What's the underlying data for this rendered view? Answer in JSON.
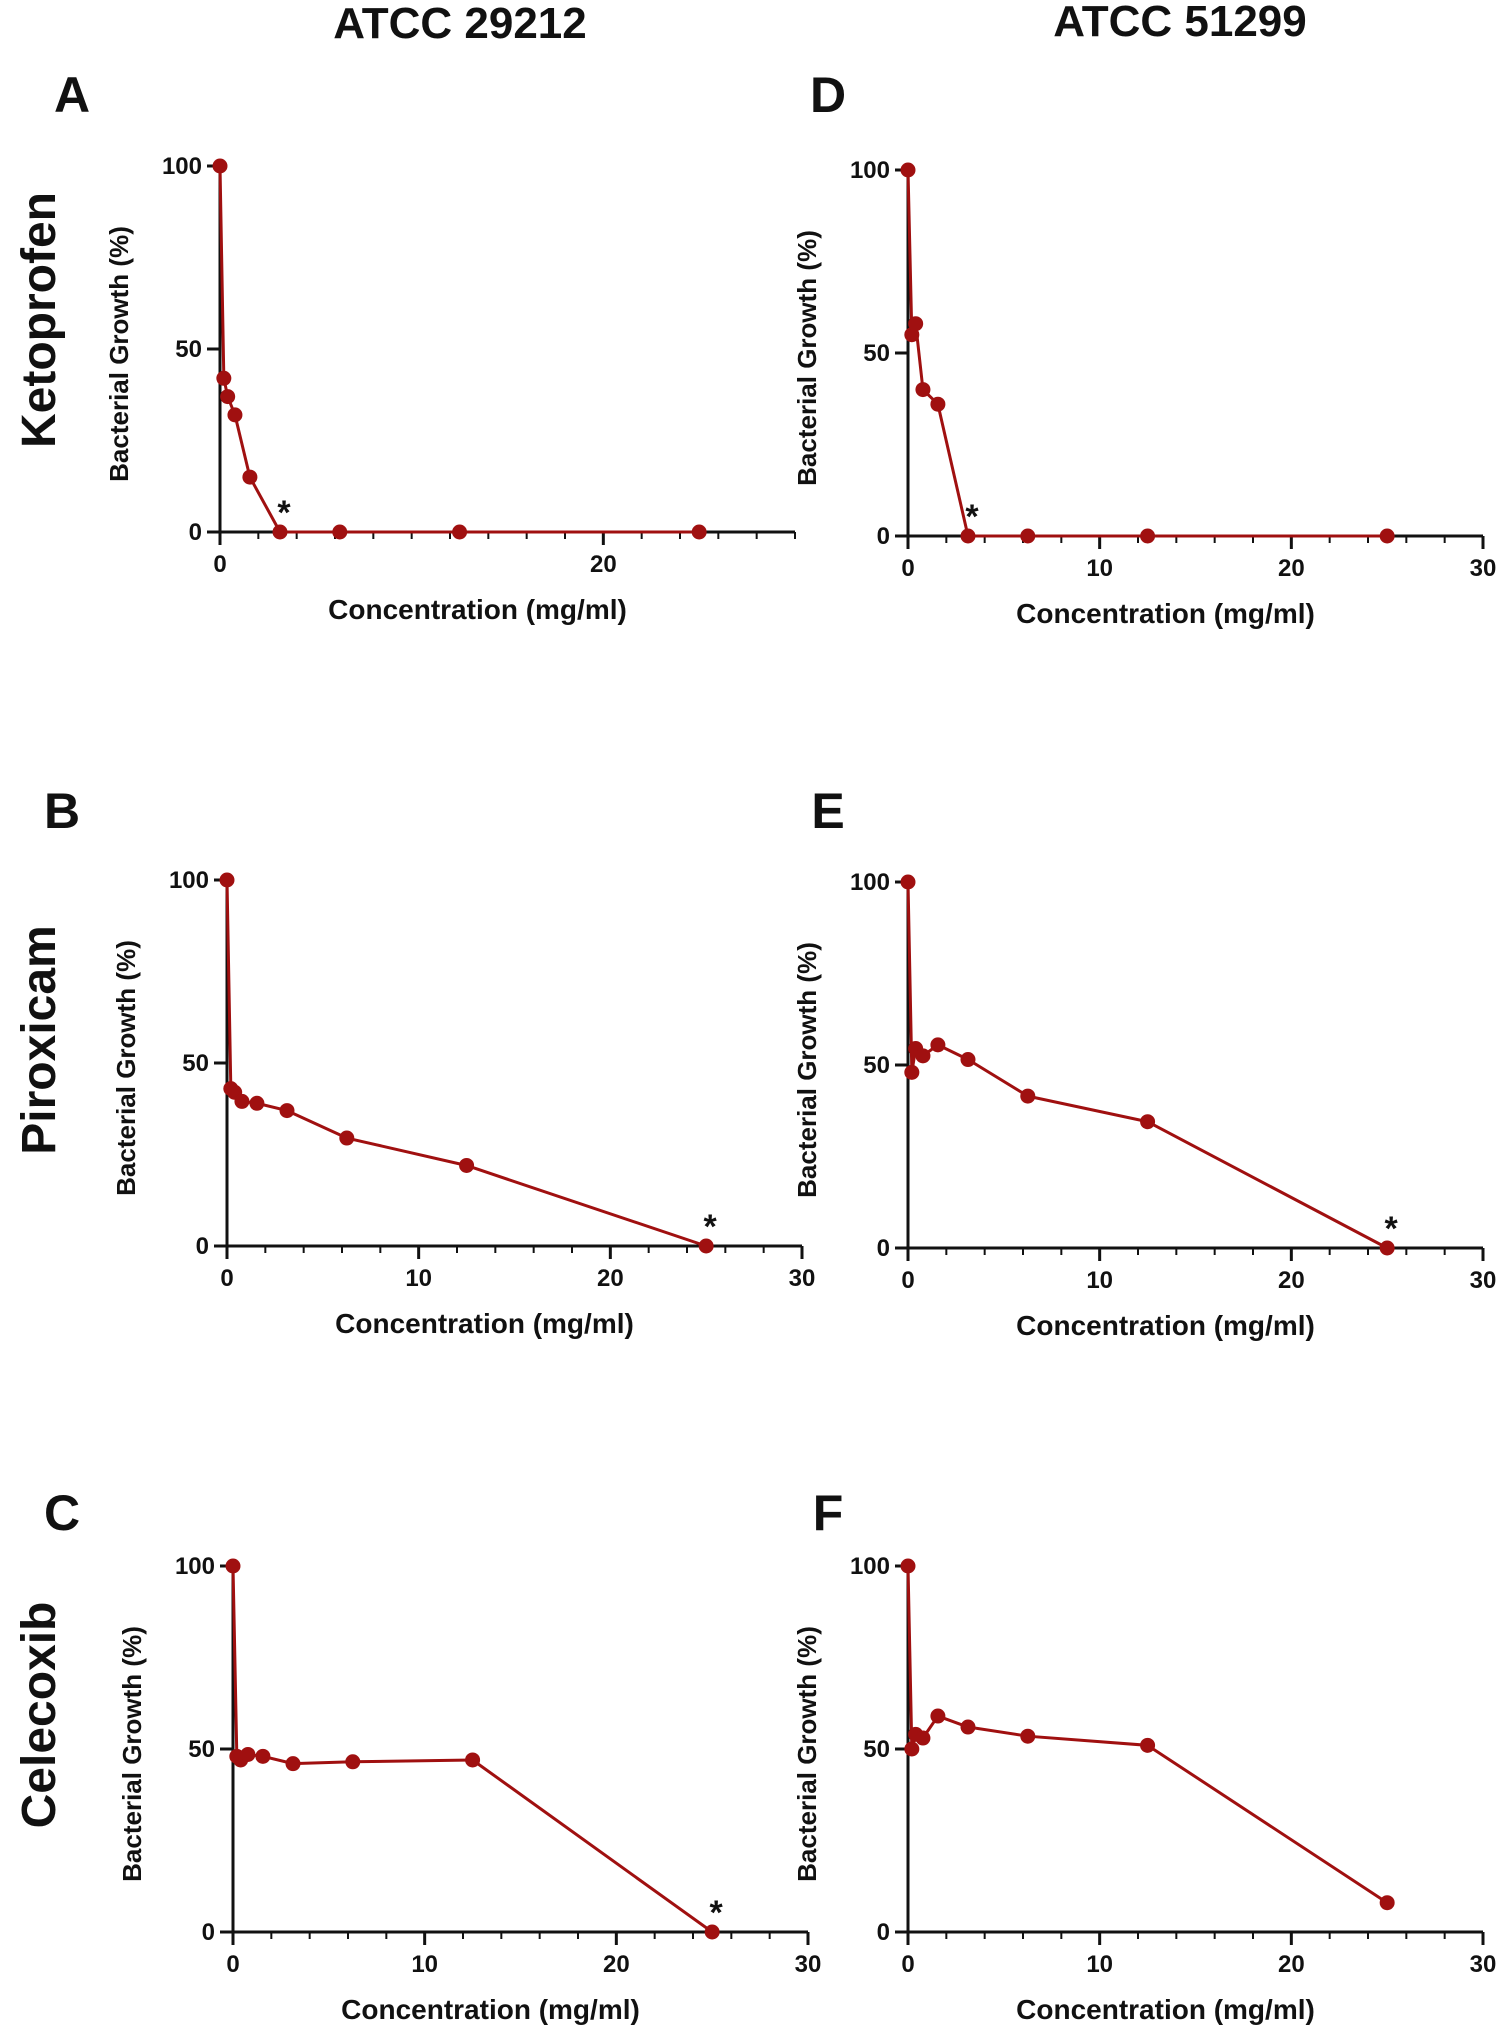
{
  "column_titles": [
    "ATCC 29212",
    "ATCC 51299"
  ],
  "row_labels": [
    "Ketoprofen",
    "Piroxicam",
    "Celecoxib"
  ],
  "colors": {
    "series": "#a01010",
    "axis": "#111111",
    "text": "#111111"
  },
  "chart_data": [
    {
      "type": "line",
      "panel": "A",
      "strain": "ATCC 29212",
      "drug": "Ketoprofen",
      "xlabel": "Concentration (mg/ml)",
      "ylabel": "Bacterial Growth (%)",
      "xlim": [
        0,
        30
      ],
      "ylim": [
        0,
        100
      ],
      "xticks": [
        0,
        20
      ],
      "xtick_labels": [
        "0",
        "20"
      ],
      "yticks": [
        0,
        50,
        100
      ],
      "ytick_labels": [
        "0",
        "50",
        "100"
      ],
      "x": [
        0,
        0.2,
        0.4,
        0.78,
        1.56,
        3.13,
        6.25,
        12.5,
        25
      ],
      "y": [
        100,
        42,
        37,
        32,
        15,
        0,
        0,
        0,
        0
      ],
      "annotations": [
        {
          "text": "*",
          "x": 3.13,
          "y": 0
        }
      ]
    },
    {
      "type": "line",
      "panel": "D",
      "strain": "ATCC 51299",
      "drug": "Ketoprofen",
      "xlabel": "Concentration (mg/ml)",
      "ylabel": "Bacterial Growth (%)",
      "xlim": [
        0,
        30
      ],
      "ylim": [
        0,
        100
      ],
      "xticks": [
        0,
        10,
        20,
        30
      ],
      "xtick_labels": [
        "0",
        "10",
        "20",
        "30"
      ],
      "yticks": [
        0,
        50,
        100
      ],
      "ytick_labels": [
        "0",
        "50",
        "100"
      ],
      "x": [
        0,
        0.2,
        0.4,
        0.78,
        1.56,
        3.13,
        6.25,
        12.5,
        25
      ],
      "y": [
        100,
        55,
        58,
        40,
        36,
        0,
        0,
        0,
        0
      ],
      "annotations": [
        {
          "text": "*",
          "x": 3.13,
          "y": 0
        }
      ]
    },
    {
      "type": "line",
      "panel": "B",
      "strain": "ATCC 29212",
      "drug": "Piroxicam",
      "xlabel": "Concentration (mg/ml)",
      "ylabel": "Bacterial Growth (%)",
      "xlim": [
        0,
        30
      ],
      "ylim": [
        0,
        100
      ],
      "xticks": [
        0,
        10,
        20,
        30
      ],
      "xtick_labels": [
        "0",
        "10",
        "20",
        "30"
      ],
      "yticks": [
        0,
        50,
        100
      ],
      "ytick_labels": [
        "0",
        "50",
        "100"
      ],
      "x": [
        0,
        0.2,
        0.4,
        0.78,
        1.56,
        3.13,
        6.25,
        12.5,
        25
      ],
      "y": [
        100,
        43,
        42,
        39.5,
        39,
        37,
        29.5,
        22,
        0
      ],
      "annotations": [
        {
          "text": "*",
          "x": 25,
          "y": 0
        }
      ]
    },
    {
      "type": "line",
      "panel": "E",
      "strain": "ATCC 51299",
      "drug": "Piroxicam",
      "xlabel": "Concentration (mg/ml)",
      "ylabel": "Bacterial Growth (%)",
      "xlim": [
        0,
        30
      ],
      "ylim": [
        0,
        100
      ],
      "xticks": [
        0,
        10,
        20,
        30
      ],
      "xtick_labels": [
        "0",
        "10",
        "20",
        "30"
      ],
      "yticks": [
        0,
        50,
        100
      ],
      "ytick_labels": [
        "0",
        "50",
        "100"
      ],
      "x": [
        0,
        0.2,
        0.4,
        0.78,
        1.56,
        3.13,
        6.25,
        12.5,
        25
      ],
      "y": [
        100,
        48,
        54.5,
        52.5,
        55.5,
        51.5,
        41.5,
        34.5,
        0
      ],
      "annotations": [
        {
          "text": "*",
          "x": 25,
          "y": 0
        }
      ]
    },
    {
      "type": "line",
      "panel": "C",
      "strain": "ATCC 29212",
      "drug": "Celecoxib",
      "xlabel": "Concentration (mg/ml)",
      "ylabel": "Bacterial Growth (%)",
      "xlim": [
        0,
        30
      ],
      "ylim": [
        0,
        100
      ],
      "xticks": [
        0,
        10,
        20,
        30
      ],
      "xtick_labels": [
        "0",
        "10",
        "20",
        "30"
      ],
      "yticks": [
        0,
        50,
        100
      ],
      "ytick_labels": [
        "0",
        "50",
        "100"
      ],
      "x": [
        0,
        0.2,
        0.4,
        0.78,
        1.56,
        3.13,
        6.25,
        12.5,
        25
      ],
      "y": [
        100,
        48,
        47,
        48.5,
        48,
        46,
        46.5,
        47,
        0
      ],
      "annotations": [
        {
          "text": "*",
          "x": 25,
          "y": 0
        }
      ]
    },
    {
      "type": "line",
      "panel": "F",
      "strain": "ATCC 51299",
      "drug": "Celecoxib",
      "xlabel": "Concentration (mg/ml)",
      "ylabel": "Bacterial Growth (%)",
      "xlim": [
        0,
        30
      ],
      "ylim": [
        0,
        100
      ],
      "xticks": [
        0,
        10,
        20,
        30
      ],
      "xtick_labels": [
        "0",
        "10",
        "20",
        "30"
      ],
      "yticks": [
        0,
        50,
        100
      ],
      "ytick_labels": [
        "0",
        "50",
        "100"
      ],
      "x": [
        0,
        0.2,
        0.4,
        0.78,
        1.56,
        3.13,
        6.25,
        12.5,
        25
      ],
      "y": [
        100,
        50,
        54,
        53,
        59,
        56,
        53.5,
        51,
        8
      ],
      "annotations": []
    }
  ]
}
